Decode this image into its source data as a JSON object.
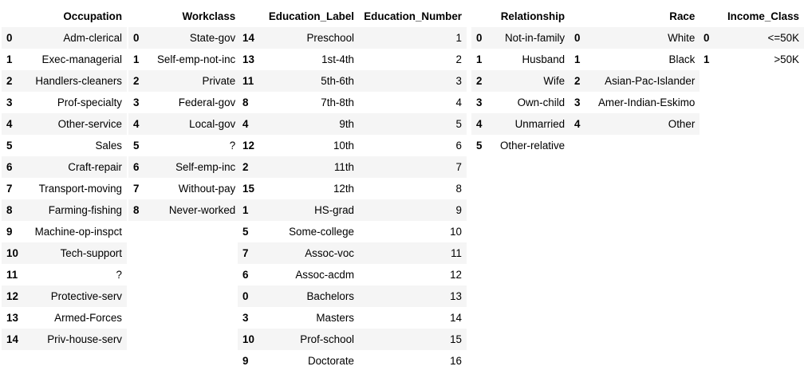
{
  "tables": [
    {
      "header": [
        "",
        "Occupation"
      ],
      "rows": [
        [
          "0",
          "Adm-clerical"
        ],
        [
          "1",
          "Exec-managerial"
        ],
        [
          "2",
          "Handlers-cleaners"
        ],
        [
          "3",
          "Prof-specialty"
        ],
        [
          "4",
          "Other-service"
        ],
        [
          "5",
          "Sales"
        ],
        [
          "6",
          "Craft-repair"
        ],
        [
          "7",
          "Transport-moving"
        ],
        [
          "8",
          "Farming-fishing"
        ],
        [
          "9",
          "Machine-op-inspct"
        ],
        [
          "10",
          "Tech-support"
        ],
        [
          "11",
          "?"
        ],
        [
          "12",
          "Protective-serv"
        ],
        [
          "13",
          "Armed-Forces"
        ],
        [
          "14",
          "Priv-house-serv"
        ]
      ]
    },
    {
      "header": [
        "",
        "Workclass"
      ],
      "rows": [
        [
          "0",
          "State-gov"
        ],
        [
          "1",
          "Self-emp-not-inc"
        ],
        [
          "2",
          "Private"
        ],
        [
          "3",
          "Federal-gov"
        ],
        [
          "4",
          "Local-gov"
        ],
        [
          "5",
          "?"
        ],
        [
          "6",
          "Self-emp-inc"
        ],
        [
          "7",
          "Without-pay"
        ],
        [
          "8",
          "Never-worked"
        ]
      ]
    },
    {
      "header": [
        "",
        "Education_Label",
        "Education_Number"
      ],
      "rows": [
        [
          "14",
          "Preschool",
          "1"
        ],
        [
          "13",
          "1st-4th",
          "2"
        ],
        [
          "11",
          "5th-6th",
          "3"
        ],
        [
          "8",
          "7th-8th",
          "4"
        ],
        [
          "4",
          "9th",
          "5"
        ],
        [
          "12",
          "10th",
          "6"
        ],
        [
          "2",
          "11th",
          "7"
        ],
        [
          "15",
          "12th",
          "8"
        ],
        [
          "1",
          "HS-grad",
          "9"
        ],
        [
          "5",
          "Some-college",
          "10"
        ],
        [
          "7",
          "Assoc-voc",
          "11"
        ],
        [
          "6",
          "Assoc-acdm",
          "12"
        ],
        [
          "0",
          "Bachelors",
          "13"
        ],
        [
          "3",
          "Masters",
          "14"
        ],
        [
          "10",
          "Prof-school",
          "15"
        ],
        [
          "9",
          "Doctorate",
          "16"
        ]
      ]
    },
    {
      "header": [
        "",
        "Relationship"
      ],
      "rows": [
        [
          "0",
          "Not-in-family"
        ],
        [
          "1",
          "Husband"
        ],
        [
          "2",
          "Wife"
        ],
        [
          "3",
          "Own-child"
        ],
        [
          "4",
          "Unmarried"
        ],
        [
          "5",
          "Other-relative"
        ]
      ]
    },
    {
      "header": [
        "",
        "Race"
      ],
      "rows": [
        [
          "0",
          "White"
        ],
        [
          "1",
          "Black"
        ],
        [
          "2",
          "Asian-Pac-Islander"
        ],
        [
          "3",
          "Amer-Indian-Eskimo"
        ],
        [
          "4",
          "Other"
        ]
      ]
    },
    {
      "header": [
        "",
        "Income_Class"
      ],
      "rows": [
        [
          "0",
          "<=50K"
        ],
        [
          "1",
          ">50K"
        ]
      ]
    }
  ]
}
